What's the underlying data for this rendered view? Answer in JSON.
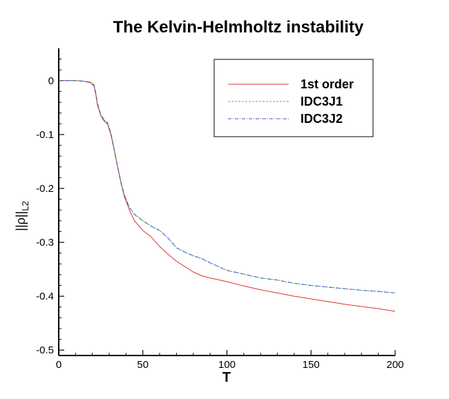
{
  "chart_data": {
    "type": "line",
    "title": "The Kelvin-Helmholtz instability",
    "xlabel": "T",
    "ylabel": {
      "main": "||ρ||",
      "sub": "L2"
    },
    "xlim": [
      0,
      200
    ],
    "ylim": [
      -0.51,
      0.06
    ],
    "x_ticks": [
      0,
      50,
      100,
      150,
      200
    ],
    "y_ticks": [
      0,
      -0.1,
      -0.2,
      -0.3,
      -0.4,
      -0.5
    ],
    "x_tick_labels": [
      "0",
      "50",
      "100",
      "150",
      "200"
    ],
    "y_tick_labels": [
      "0",
      "-0.1",
      "-0.2",
      "-0.3",
      "-0.4",
      "-0.5"
    ],
    "grid": false,
    "legend_position": "top-right",
    "series": [
      {
        "name": "1st order",
        "color": "#e03030",
        "style": "solid",
        "points": [
          [
            0,
            0
          ],
          [
            10,
            0
          ],
          [
            15,
            -0.001
          ],
          [
            19,
            -0.004
          ],
          [
            21,
            -0.01
          ],
          [
            22,
            -0.025
          ],
          [
            23,
            -0.045
          ],
          [
            25,
            -0.065
          ],
          [
            27,
            -0.075
          ],
          [
            29,
            -0.08
          ],
          [
            31,
            -0.1
          ],
          [
            33,
            -0.13
          ],
          [
            35,
            -0.16
          ],
          [
            37,
            -0.19
          ],
          [
            39,
            -0.215
          ],
          [
            42,
            -0.24
          ],
          [
            45,
            -0.26
          ],
          [
            50,
            -0.278
          ],
          [
            55,
            -0.29
          ],
          [
            60,
            -0.308
          ],
          [
            65,
            -0.322
          ],
          [
            70,
            -0.335
          ],
          [
            75,
            -0.345
          ],
          [
            80,
            -0.355
          ],
          [
            85,
            -0.362
          ],
          [
            90,
            -0.366
          ],
          [
            100,
            -0.373
          ],
          [
            110,
            -0.381
          ],
          [
            120,
            -0.388
          ],
          [
            130,
            -0.394
          ],
          [
            140,
            -0.4
          ],
          [
            150,
            -0.405
          ],
          [
            160,
            -0.41
          ],
          [
            170,
            -0.415
          ],
          [
            180,
            -0.419
          ],
          [
            190,
            -0.423
          ],
          [
            200,
            -0.428
          ]
        ]
      },
      {
        "name": "IDC3J1",
        "color": "#33cc33",
        "style": "dashed",
        "points": [
          [
            0,
            0
          ],
          [
            10,
            0
          ],
          [
            15,
            -0.001
          ],
          [
            19,
            -0.003
          ],
          [
            21,
            -0.008
          ],
          [
            22,
            -0.022
          ],
          [
            23,
            -0.042
          ],
          [
            25,
            -0.063
          ],
          [
            27,
            -0.073
          ],
          [
            29,
            -0.078
          ],
          [
            31,
            -0.097
          ],
          [
            33,
            -0.128
          ],
          [
            35,
            -0.158
          ],
          [
            37,
            -0.188
          ],
          [
            39,
            -0.212
          ],
          [
            42,
            -0.235
          ],
          [
            45,
            -0.248
          ],
          [
            50,
            -0.26
          ],
          [
            55,
            -0.27
          ],
          [
            60,
            -0.278
          ],
          [
            65,
            -0.292
          ],
          [
            70,
            -0.31
          ],
          [
            75,
            -0.318
          ],
          [
            80,
            -0.325
          ],
          [
            85,
            -0.33
          ],
          [
            90,
            -0.338
          ],
          [
            100,
            -0.352
          ],
          [
            110,
            -0.359
          ],
          [
            120,
            -0.366
          ],
          [
            130,
            -0.37
          ],
          [
            140,
            -0.376
          ],
          [
            150,
            -0.38
          ],
          [
            160,
            -0.383
          ],
          [
            170,
            -0.386
          ],
          [
            180,
            -0.389
          ],
          [
            190,
            -0.391
          ],
          [
            200,
            -0.394
          ]
        ]
      },
      {
        "name": "IDC3J2",
        "color": "#4444dd",
        "style": "dashdot",
        "points": [
          [
            0,
            0
          ],
          [
            10,
            0
          ],
          [
            15,
            -0.001
          ],
          [
            19,
            -0.003
          ],
          [
            21,
            -0.008
          ],
          [
            22,
            -0.022
          ],
          [
            23,
            -0.042
          ],
          [
            25,
            -0.063
          ],
          [
            27,
            -0.073
          ],
          [
            29,
            -0.078
          ],
          [
            31,
            -0.097
          ],
          [
            33,
            -0.128
          ],
          [
            35,
            -0.158
          ],
          [
            37,
            -0.188
          ],
          [
            39,
            -0.212
          ],
          [
            42,
            -0.235
          ],
          [
            45,
            -0.248
          ],
          [
            50,
            -0.26
          ],
          [
            55,
            -0.27
          ],
          [
            60,
            -0.278
          ],
          [
            65,
            -0.292
          ],
          [
            70,
            -0.31
          ],
          [
            75,
            -0.318
          ],
          [
            80,
            -0.325
          ],
          [
            85,
            -0.33
          ],
          [
            90,
            -0.338
          ],
          [
            100,
            -0.352
          ],
          [
            110,
            -0.359
          ],
          [
            120,
            -0.366
          ],
          [
            130,
            -0.37
          ],
          [
            140,
            -0.376
          ],
          [
            150,
            -0.38
          ],
          [
            160,
            -0.383
          ],
          [
            170,
            -0.386
          ],
          [
            180,
            -0.389
          ],
          [
            190,
            -0.391
          ],
          [
            200,
            -0.394
          ]
        ]
      }
    ]
  }
}
